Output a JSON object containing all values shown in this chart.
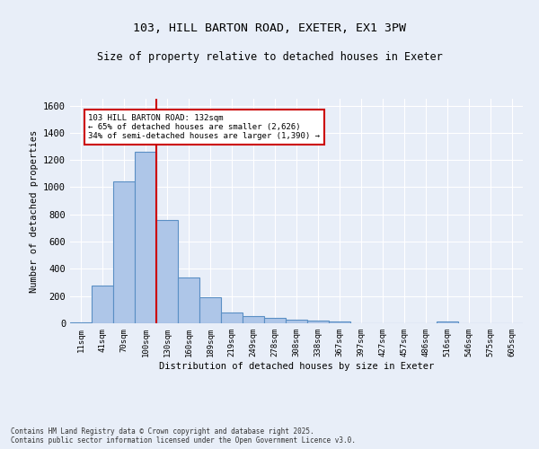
{
  "title_line1": "103, HILL BARTON ROAD, EXETER, EX1 3PW",
  "title_line2": "Size of property relative to detached houses in Exeter",
  "xlabel": "Distribution of detached houses by size in Exeter",
  "ylabel": "Number of detached properties",
  "footer_line1": "Contains HM Land Registry data © Crown copyright and database right 2025.",
  "footer_line2": "Contains public sector information licensed under the Open Government Licence v3.0.",
  "annotation_line1": "103 HILL BARTON ROAD: 132sqm",
  "annotation_line2": "← 65% of detached houses are smaller (2,626)",
  "annotation_line3": "34% of semi-detached houses are larger (1,390) →",
  "bar_color": "#aec6e8",
  "bar_edge_color": "#5a8fc4",
  "marker_line_color": "#cc0000",
  "background_color": "#e8eef8",
  "grid_color": "#ffffff",
  "ylim": [
    0,
    1650
  ],
  "yticks": [
    0,
    200,
    400,
    600,
    800,
    1000,
    1200,
    1400,
    1600
  ],
  "categories": [
    "11sqm",
    "41sqm",
    "70sqm",
    "100sqm",
    "130sqm",
    "160sqm",
    "189sqm",
    "219sqm",
    "249sqm",
    "278sqm",
    "308sqm",
    "338sqm",
    "367sqm",
    "397sqm",
    "427sqm",
    "457sqm",
    "486sqm",
    "516sqm",
    "546sqm",
    "575sqm",
    "605sqm"
  ],
  "values": [
    8,
    280,
    1040,
    1260,
    760,
    335,
    190,
    80,
    55,
    38,
    28,
    20,
    10,
    0,
    0,
    0,
    0,
    10,
    0,
    0,
    0
  ],
  "marker_bin_index": 4,
  "figsize": [
    6.0,
    5.0
  ],
  "dpi": 100
}
